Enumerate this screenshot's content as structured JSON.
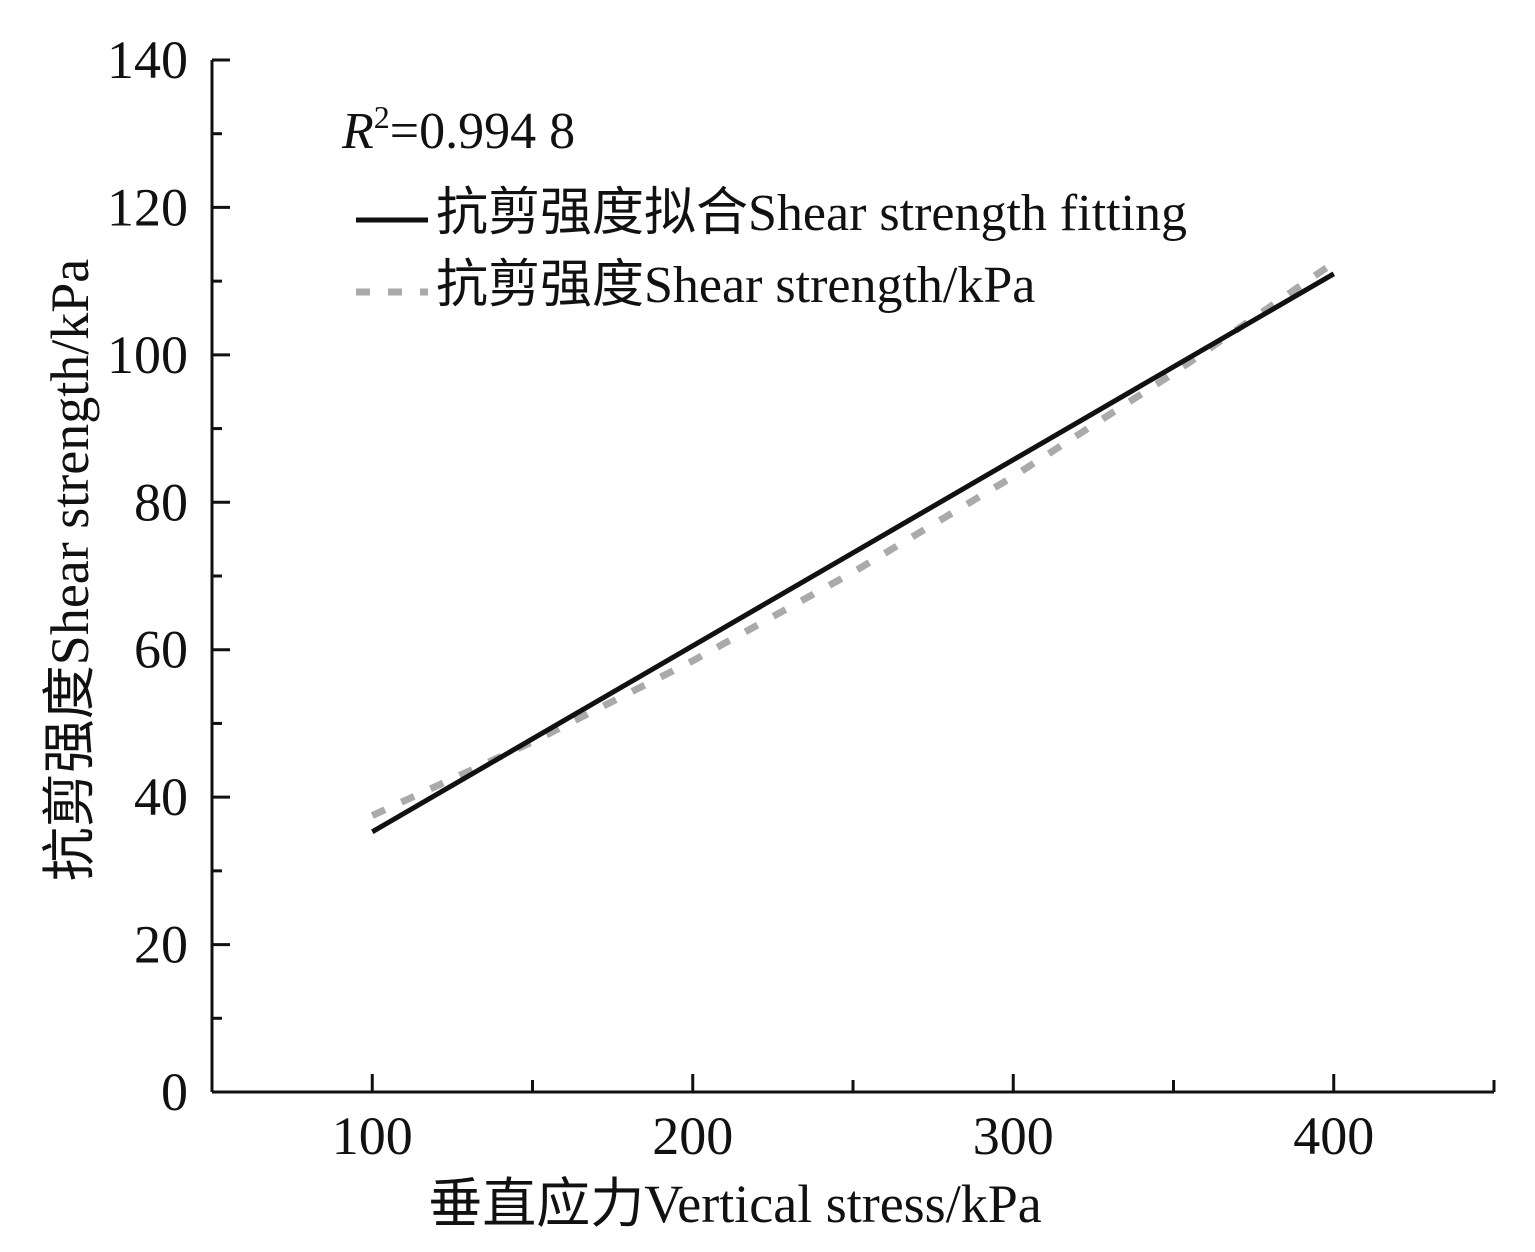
{
  "chart_data": {
    "type": "line",
    "xlabel": "垂直应力Vertical stress/kPa",
    "ylabel": "抗剪强度Shear strength/kPa",
    "xlim": [
      50,
      450
    ],
    "ylim": [
      0,
      140
    ],
    "x_ticks": [
      100,
      200,
      300,
      400
    ],
    "x_minor_ticks": [
      150,
      250,
      350,
      450
    ],
    "y_ticks": [
      0,
      20,
      40,
      60,
      80,
      100,
      120,
      140
    ],
    "y_minor_ticks": [
      10,
      30,
      50,
      70,
      90,
      110,
      130
    ],
    "grid": false,
    "legend_position": "top-left",
    "annotation": {
      "r_italic": "R",
      "superscript": "2",
      "value": "=0.994 8"
    },
    "series": [
      {
        "name": "抗剪强度拟合Shear strength fitting",
        "style": "solid",
        "color": "#111111",
        "x": [
          100,
          400
        ],
        "y": [
          35.3,
          111.0
        ]
      },
      {
        "name": "抗剪强度Shear strength/kPa",
        "style": "dashed",
        "color": "#aaaaaa",
        "x": [
          100,
          150,
          200,
          250,
          300,
          350,
          400
        ],
        "y": [
          37.5,
          47.5,
          58.5,
          70.5,
          83.5,
          97.5,
          112.5
        ]
      }
    ]
  }
}
